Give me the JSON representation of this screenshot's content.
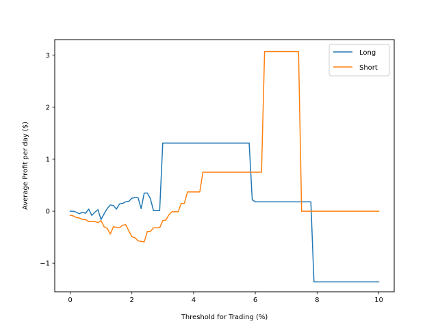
{
  "chart_data": {
    "type": "line",
    "title": "",
    "xlabel": "Threshold for Trading (%)",
    "ylabel": "Average Profit per day ($)",
    "xlim": [
      -0.5,
      10.5
    ],
    "ylim": [
      -1.55,
      3.3
    ],
    "xticks": [
      0,
      2,
      4,
      6,
      8,
      10
    ],
    "yticks": [
      -1,
      0,
      1,
      2,
      3
    ],
    "grid": false,
    "legend_position": "top-right",
    "series": [
      {
        "name": "Long",
        "color": "#1f77b4",
        "x": [
          0.0,
          0.1,
          0.2,
          0.3,
          0.4,
          0.5,
          0.6,
          0.7,
          0.8,
          0.9,
          1.0,
          1.1,
          1.2,
          1.3,
          1.4,
          1.5,
          1.6,
          1.7,
          1.8,
          1.9,
          2.0,
          2.1,
          2.2,
          2.3,
          2.4,
          2.5,
          2.6,
          2.7,
          2.8,
          2.9,
          3.0,
          5.8,
          5.9,
          6.0,
          7.8,
          7.9,
          10.0
        ],
        "y": [
          0.0,
          0.0,
          -0.02,
          -0.05,
          -0.02,
          -0.04,
          0.04,
          -0.08,
          -0.02,
          0.03,
          -0.16,
          -0.05,
          0.05,
          0.12,
          0.11,
          0.04,
          0.14,
          0.15,
          0.18,
          0.19,
          0.25,
          0.26,
          0.26,
          0.05,
          0.35,
          0.35,
          0.24,
          0.01,
          0.01,
          0.01,
          1.31,
          1.31,
          0.22,
          0.18,
          0.18,
          -1.36,
          -1.36
        ]
      },
      {
        "name": "Short",
        "color": "#ff7f0e",
        "x": [
          0.0,
          0.1,
          0.2,
          0.3,
          0.4,
          0.5,
          0.6,
          0.7,
          0.8,
          0.9,
          1.0,
          1.1,
          1.2,
          1.3,
          1.4,
          1.5,
          1.6,
          1.7,
          1.8,
          1.9,
          2.0,
          2.1,
          2.2,
          2.3,
          2.4,
          2.5,
          2.6,
          2.7,
          2.8,
          2.9,
          3.0,
          3.1,
          3.2,
          3.3,
          3.4,
          3.5,
          3.6,
          3.7,
          3.8,
          4.2,
          4.3,
          6.2,
          6.3,
          7.4,
          7.5,
          10.0
        ],
        "y": [
          -0.08,
          -0.09,
          -0.12,
          -0.13,
          -0.16,
          -0.16,
          -0.2,
          -0.2,
          -0.2,
          -0.22,
          -0.18,
          -0.3,
          -0.33,
          -0.44,
          -0.3,
          -0.31,
          -0.32,
          -0.27,
          -0.26,
          -0.38,
          -0.49,
          -0.51,
          -0.57,
          -0.58,
          -0.59,
          -0.39,
          -0.39,
          -0.32,
          -0.32,
          -0.32,
          -0.18,
          -0.17,
          -0.07,
          -0.01,
          -0.01,
          -0.01,
          0.15,
          0.15,
          0.37,
          0.37,
          0.75,
          0.75,
          3.07,
          3.07,
          0.0,
          0.0
        ]
      }
    ]
  }
}
